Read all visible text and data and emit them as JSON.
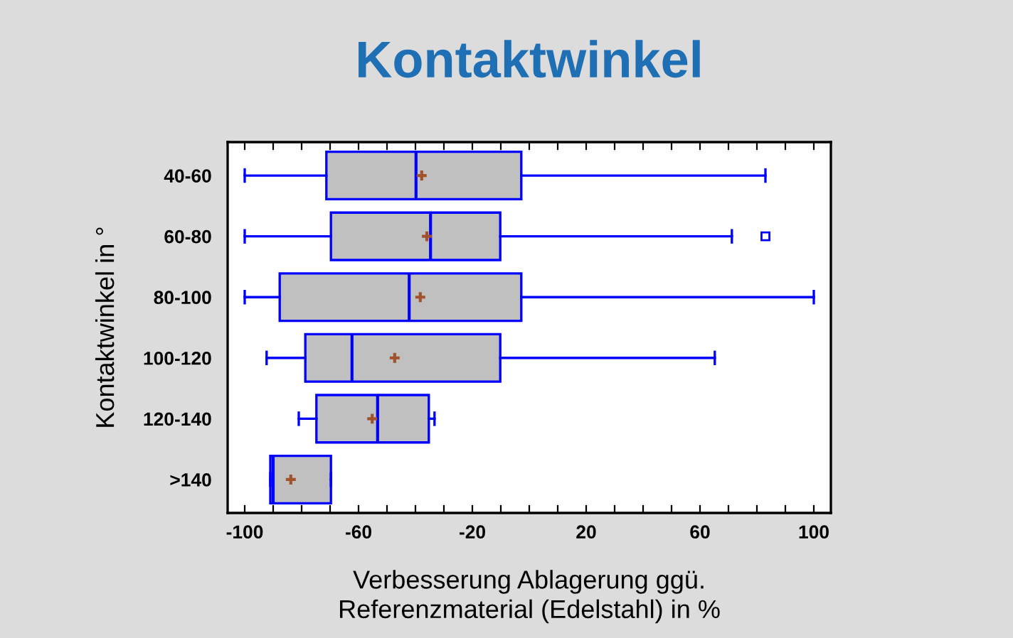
{
  "chart_data": {
    "type": "box",
    "title": "Kontaktwinkel",
    "orientation": "horizontal",
    "xlabel": "Verbesserung Ablagerung ggü.\nReferenzmaterial (Edelstahl) in %",
    "ylabel": "Kontaktwinkel in °",
    "categories": [
      "40-60",
      "60-80",
      "80-100",
      "100-120",
      "120-140",
      ">140"
    ],
    "boxes": [
      {
        "low": -100,
        "q1": -71.3,
        "median": -39.8,
        "q3": -2.8,
        "high": 83,
        "mean": -37.8
      },
      {
        "low": -100,
        "q1": -69.7,
        "median": -34.7,
        "q3": -10.2,
        "high": 71.2,
        "mean": -36,
        "outliers": [
          83
        ]
      },
      {
        "low": -100,
        "q1": -87.7,
        "median": -42.2,
        "q3": -2.8,
        "high": 100,
        "mean": -38.3
      },
      {
        "low": -92.3,
        "q1": -78.7,
        "median": -62.3,
        "q3": -10.2,
        "high": 65.2,
        "mean": -47.3
      },
      {
        "low": -81,
        "q1": -74.8,
        "median": -53.3,
        "q3": -35.3,
        "high": -33.3,
        "mean": -55.2
      },
      {
        "low": -91,
        "q1": -91,
        "median": -90,
        "q3": -69.7,
        "high": -69.7,
        "mean": -83.8
      }
    ],
    "color": "#c0c0c0",
    "xlim": [
      -106,
      106
    ],
    "xticks": [
      -100,
      {
        "value": -90,
        "label": null
      },
      {
        "value": -80,
        "label": null
      },
      {
        "value": -70,
        "label": null
      },
      -60,
      {
        "value": -50,
        "label": null
      },
      {
        "value": -40,
        "label": null
      },
      {
        "value": -30,
        "label": null
      },
      -20,
      {
        "value": -10,
        "label": null
      },
      {
        "value": 0,
        "label": null
      },
      {
        "value": 10,
        "label": null
      },
      20,
      {
        "value": 30,
        "label": null
      },
      {
        "value": 40,
        "label": null
      },
      {
        "value": 50,
        "label": null
      },
      60,
      {
        "value": 70,
        "label": null
      },
      {
        "value": 80,
        "label": null
      },
      {
        "value": 90,
        "label": null
      },
      100
    ],
    "grid": false
  }
}
